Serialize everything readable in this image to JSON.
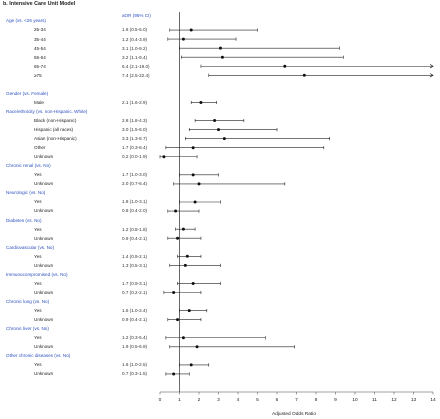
{
  "panel_title": "b. Intensive Care Unit Model",
  "aor_header": "aOR (95% CI)",
  "chart_data": {
    "type": "forest",
    "xlabel": "Adjusted Odds Ratio",
    "xlim": [
      0,
      14
    ],
    "xticks": [
      0,
      1,
      2,
      3,
      4,
      5,
      6,
      7,
      8,
      9,
      10,
      11,
      12,
      13,
      14
    ],
    "reference_line": 1,
    "grid": false,
    "rows": [
      {
        "kind": "group",
        "label": "Age (vs. <25 years)"
      },
      {
        "kind": "item",
        "label": "25-34",
        "ci_text": "1.6 (0.5-5.0)",
        "or": 1.6,
        "lo": 0.5,
        "hi": 5.0
      },
      {
        "kind": "item",
        "label": "35-44",
        "ci_text": "1.2 (0.4-3.9)",
        "or": 1.2,
        "lo": 0.4,
        "hi": 3.9
      },
      {
        "kind": "item",
        "label": "45-54",
        "ci_text": "3.1 (1.0-9.2)",
        "or": 3.1,
        "lo": 1.0,
        "hi": 9.2
      },
      {
        "kind": "item",
        "label": "55-64",
        "ci_text": "3.2 (1.1-9.4)",
        "or": 3.2,
        "lo": 1.1,
        "hi": 9.4
      },
      {
        "kind": "item",
        "label": "65-74",
        "ci_text": "6.4 (2.1-19.0)",
        "or": 6.4,
        "lo": 2.1,
        "hi": 19.0
      },
      {
        "kind": "item",
        "label": "≥75",
        "ci_text": "7.4 (2.5-22.4)",
        "or": 7.4,
        "lo": 2.5,
        "hi": 22.4
      },
      {
        "kind": "gap"
      },
      {
        "kind": "group",
        "label": "Gender (vs. Female)"
      },
      {
        "kind": "item",
        "label": "Male",
        "ci_text": "2.1 (1.6-2.9)",
        "or": 2.1,
        "lo": 1.6,
        "hi": 2.9
      },
      {
        "kind": "group",
        "label": "Race/ethnicity (vs. non-Hispanic. White)"
      },
      {
        "kind": "item",
        "label": "Black (non-Hispanic)",
        "ci_text": "2.8 (1.8-4.3)",
        "or": 2.8,
        "lo": 1.8,
        "hi": 4.3
      },
      {
        "kind": "item",
        "label": "Hispanic (all races)",
        "ci_text": "3.0 (1.5-6.0)",
        "or": 3.0,
        "lo": 1.5,
        "hi": 6.0
      },
      {
        "kind": "item",
        "label": "Asian (non-Hispanic)",
        "ci_text": "3.3 (1.3-8.7)",
        "or": 3.3,
        "lo": 1.3,
        "hi": 8.7
      },
      {
        "kind": "item",
        "label": "Other",
        "ci_text": "1.7 (0.3-8.4)",
        "or": 1.7,
        "lo": 0.3,
        "hi": 8.4
      },
      {
        "kind": "item",
        "label": "Unknown",
        "ci_text": "0.2 (0.0-1.9)",
        "or": 0.2,
        "lo": 0.0,
        "hi": 1.9
      },
      {
        "kind": "group",
        "label": "Chronic renal (vs. No)"
      },
      {
        "kind": "item",
        "label": "Yes",
        "ci_text": "1.7 (1.0-3.0)",
        "or": 1.7,
        "lo": 1.0,
        "hi": 3.0
      },
      {
        "kind": "item",
        "label": "Unknown",
        "ci_text": "2.0 (0.7-6.4)",
        "or": 2.0,
        "lo": 0.7,
        "hi": 6.4
      },
      {
        "kind": "group",
        "label": "Neurologic (vs. No)"
      },
      {
        "kind": "item",
        "label": "Yes",
        "ci_text": "1.8 (1.0-3.1)",
        "or": 1.8,
        "lo": 1.0,
        "hi": 3.1
      },
      {
        "kind": "item",
        "label": "Unknown",
        "ci_text": "0.8 (0.4-2.0)",
        "or": 0.8,
        "lo": 0.4,
        "hi": 2.0
      },
      {
        "kind": "group",
        "label": "Diabetes (vs. No)"
      },
      {
        "kind": "item",
        "label": "Yes",
        "ci_text": "1.2 (0.8-1.8)",
        "or": 1.2,
        "lo": 0.8,
        "hi": 1.8
      },
      {
        "kind": "item",
        "label": "Unknown",
        "ci_text": "0.9 (0.4-2.1)",
        "or": 0.9,
        "lo": 0.4,
        "hi": 2.1
      },
      {
        "kind": "group",
        "label": "Cardiovascular (vs. No)"
      },
      {
        "kind": "item",
        "label": "Yes",
        "ci_text": "1.4 (0.9-2.1)",
        "or": 1.4,
        "lo": 0.9,
        "hi": 2.1
      },
      {
        "kind": "item",
        "label": "Unknown",
        "ci_text": "1.3 (0.5-3.1)",
        "or": 1.3,
        "lo": 0.5,
        "hi": 3.1
      },
      {
        "kind": "group",
        "label": "Immunocompromised (vs. No)"
      },
      {
        "kind": "item",
        "label": "Yes",
        "ci_text": "1.7 (0.9-3.1)",
        "or": 1.7,
        "lo": 0.9,
        "hi": 3.1
      },
      {
        "kind": "item",
        "label": "Unknown",
        "ci_text": "0.7 (0.2-2.1)",
        "or": 0.7,
        "lo": 0.2,
        "hi": 2.1
      },
      {
        "kind": "group",
        "label": "Chronic lung (vs. No)"
      },
      {
        "kind": "item",
        "label": "Yes",
        "ci_text": "1.5 (1.0-2.4)",
        "or": 1.5,
        "lo": 1.0,
        "hi": 2.4
      },
      {
        "kind": "item",
        "label": "Unknown",
        "ci_text": "0.9 (0.4-2.1)",
        "or": 0.9,
        "lo": 0.4,
        "hi": 2.1
      },
      {
        "kind": "group",
        "label": "Chronic liver (vs. No)"
      },
      {
        "kind": "item",
        "label": "Yes",
        "ci_text": "1.2 (0.3-5.4)",
        "or": 1.2,
        "lo": 0.3,
        "hi": 5.4
      },
      {
        "kind": "item",
        "label": "Unknown",
        "ci_text": "1.9 (0.5-6.9)",
        "or": 1.9,
        "lo": 0.5,
        "hi": 6.9
      },
      {
        "kind": "group",
        "label": "Other chronic diseases (vs. No)"
      },
      {
        "kind": "item",
        "label": "Yes",
        "ci_text": "1.6 (1.0-2.5)",
        "or": 1.6,
        "lo": 1.0,
        "hi": 2.5
      },
      {
        "kind": "item",
        "label": "Unknown",
        "ci_text": "0.7 (0.3-1.5)",
        "or": 0.7,
        "lo": 0.3,
        "hi": 1.5
      }
    ]
  }
}
